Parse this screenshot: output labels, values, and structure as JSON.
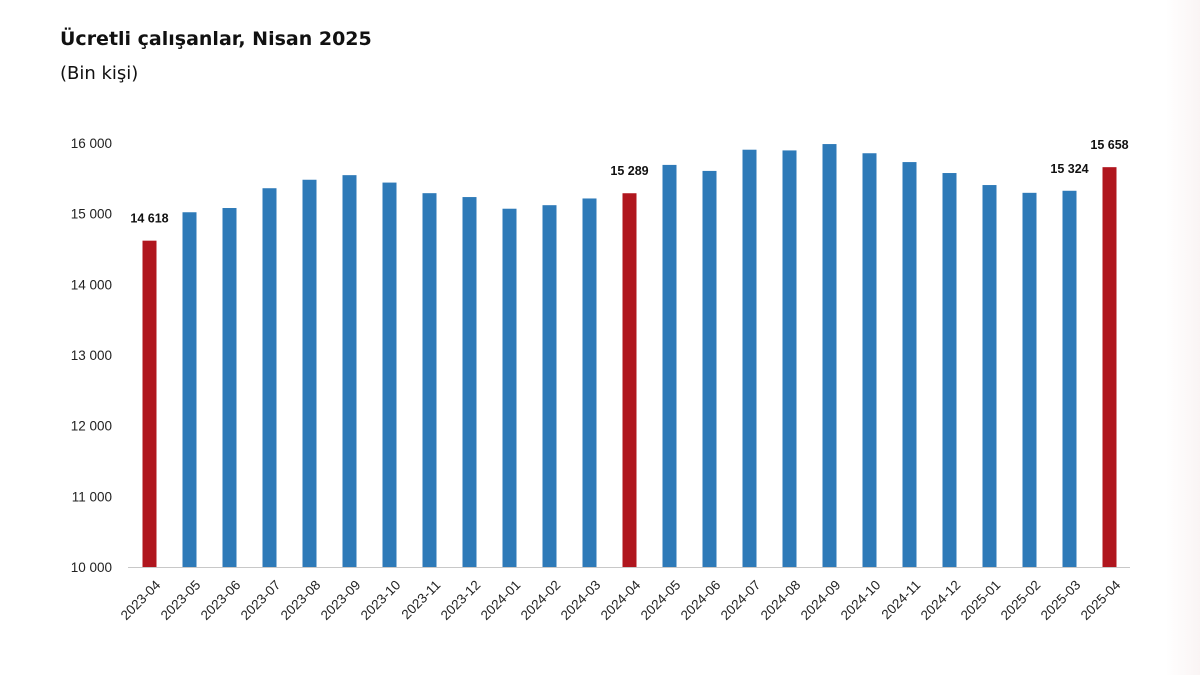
{
  "header": {
    "title": "Ücretli çalışanlar, Nisan 2025",
    "subtitle": "(Bin kişi)"
  },
  "colors": {
    "highlight": "#b0161e",
    "regular": "#2e7ab8",
    "axis": "#c8c8c8"
  },
  "chart_data": {
    "type": "bar",
    "title": "Ücretli çalışanlar, Nisan 2025",
    "subtitle": "(Bin kişi)",
    "xlabel": "",
    "ylabel": "",
    "ylim": [
      10000,
      16000
    ],
    "yticks": [
      10000,
      11000,
      12000,
      13000,
      14000,
      15000,
      16000
    ],
    "ytick_labels": [
      "10 000",
      "11 000",
      "12 000",
      "13 000",
      "14 000",
      "15 000",
      "16 000"
    ],
    "grid": false,
    "legend": "none",
    "categories": [
      "2023-04",
      "2023-05",
      "2023-06",
      "2023-07",
      "2023-08",
      "2023-09",
      "2023-10",
      "2023-11",
      "2023-12",
      "2024-01",
      "2024-02",
      "2024-03",
      "2024-04",
      "2024-05",
      "2024-06",
      "2024-07",
      "2024-08",
      "2024-09",
      "2024-10",
      "2024-11",
      "2024-12",
      "2025-01",
      "2025-02",
      "2025-03",
      "2025-04"
    ],
    "values": [
      14618,
      15020,
      15080,
      15360,
      15480,
      15545,
      15440,
      15290,
      15235,
      15070,
      15120,
      15215,
      15289,
      15690,
      15605,
      15905,
      15895,
      15985,
      15855,
      15730,
      15575,
      15405,
      15295,
      15324,
      15658
    ],
    "highlighted": [
      "2023-04",
      "2024-04",
      "2025-04"
    ],
    "data_labels": [
      {
        "category": "2023-04",
        "text": "14 618"
      },
      {
        "category": "2024-04",
        "text": "15 289"
      },
      {
        "category": "2025-03",
        "text": "15 324"
      },
      {
        "category": "2025-04",
        "text": "15 658"
      }
    ]
  }
}
